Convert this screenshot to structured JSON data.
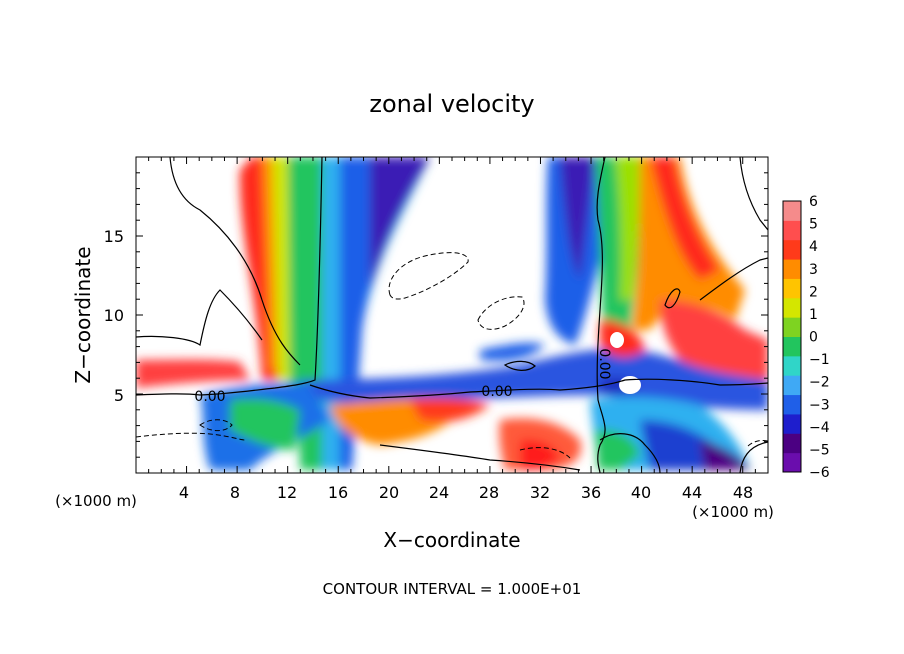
{
  "chart_data": {
    "type": "heatmap",
    "title": "zonal velocity",
    "xlabel": "X−coordinate",
    "ylabel": "Z−coordinate",
    "x_unit_left": "(×1000 m)",
    "x_unit_right": "(×1000 m)",
    "footer": "CONTOUR INTERVAL = 1.000E+01",
    "xlim": [
      0,
      50
    ],
    "ylim": [
      0,
      20
    ],
    "x_ticks": [
      "4",
      "8",
      "12",
      "16",
      "20",
      "24",
      "28",
      "32",
      "36",
      "40",
      "44",
      "48"
    ],
    "y_ticks": [
      "5",
      "10",
      "15"
    ],
    "colorbar": {
      "min": -6,
      "max": 6,
      "labels": [
        "6",
        "5",
        "4",
        "3",
        "2",
        "1",
        "0",
        "−1",
        "−2",
        "−3",
        "−4",
        "−5",
        "−6"
      ],
      "colors": [
        "#6a0dad",
        "#4b0082",
        "#1e1ecd",
        "#1f5fe8",
        "#3fa9f5",
        "#30d5c8",
        "#22c55e",
        "#7ed321",
        "#d4e600",
        "#ffc400",
        "#ff8c00",
        "#ff3a1a",
        "#ff4e4e",
        "#f58b8b"
      ]
    },
    "contour_labels": [
      "0.00",
      "0.00",
      "0.00"
    ],
    "bands": [
      {
        "x": [
          9.5,
          15
        ],
        "u": 5
      },
      {
        "x": [
          14,
          22
        ],
        "u": -4
      },
      {
        "x": [
          33,
          40
        ],
        "u": -3
      },
      {
        "x": [
          38,
          46
        ],
        "u": 4
      }
    ]
  }
}
